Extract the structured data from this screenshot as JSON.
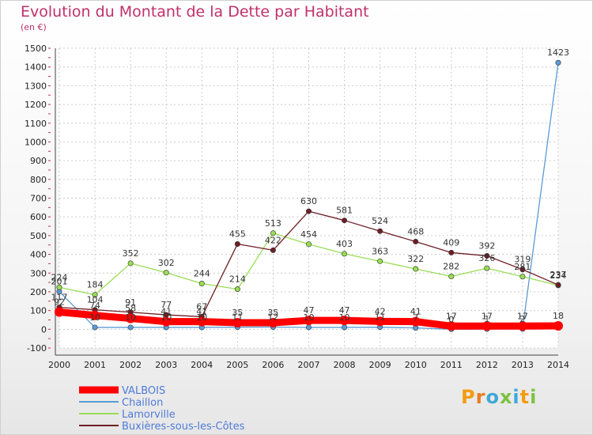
{
  "chart_data": {
    "type": "line",
    "title": "Evolution du Montant de la Dette par Habitant",
    "subtitle": "(en €)",
    "xlabel": "",
    "ylabel": "",
    "x": [
      2000,
      2001,
      2002,
      2003,
      2004,
      2005,
      2006,
      2007,
      2008,
      2009,
      2010,
      2011,
      2012,
      2013,
      2014
    ],
    "ylim": [
      -100,
      1500
    ],
    "y_ticks": [
      -100,
      0,
      100,
      200,
      300,
      400,
      500,
      600,
      700,
      800,
      900,
      1000,
      1100,
      1200,
      1300,
      1400,
      1500
    ],
    "grid": true,
    "legend_position": "bottom-left",
    "series": [
      {
        "name": "Chaillon",
        "color": "#5b9bd5",
        "values": [
          201,
          10,
          10,
          10,
          10,
          11,
          12,
          10,
          10,
          11,
          7,
          0,
          1,
          2,
          1423
        ],
        "labels": [
          "201",
          "10",
          "10",
          "10",
          "10",
          "11",
          "12",
          "10",
          "10",
          "11",
          "7",
          "0",
          "1",
          "2",
          "1423"
        ]
      },
      {
        "name": "Lamorville",
        "color": "#99dd55",
        "values": [
          224,
          184,
          352,
          302,
          244,
          214,
          513,
          454,
          403,
          363,
          322,
          282,
          326,
          281,
          234
        ],
        "labels": [
          "224",
          "184",
          "352",
          "302",
          "244",
          "214",
          "513",
          "454",
          "403",
          "363",
          "322",
          "282",
          "326",
          "281",
          "234"
        ]
      },
      {
        "name": "Buxières-sous-les-Côtes",
        "color": "#6e1f25",
        "values": [
          117,
          104,
          91,
          77,
          67,
          455,
          422,
          630,
          581,
          524,
          468,
          409,
          392,
          319,
          237
        ],
        "labels": [
          "117",
          "104",
          "91",
          "77",
          "67",
          "455",
          "422",
          "630",
          "581",
          "524",
          "468",
          "409",
          "392",
          "319",
          "237"
        ]
      },
      {
        "name": "VALBOIS",
        "color": "#ff0000",
        "values": [
          92,
          74,
          58,
          41,
          41,
          35,
          35,
          47,
          47,
          42,
          41,
          17,
          17,
          17,
          18
        ],
        "labels": [
          "92",
          "74",
          "58",
          "41",
          "41",
          "35",
          "35",
          "47",
          "47",
          "42",
          "41",
          "17",
          "17",
          "17",
          "18"
        ]
      }
    ],
    "legend": [
      "VALBOIS",
      "Chaillon",
      "Lamorville",
      "Buxières-sous-les-Côtes"
    ]
  },
  "branding": {
    "logo_letters": [
      "P",
      "r",
      "o",
      "x",
      "i",
      "t",
      "i"
    ],
    "logo_colors": [
      "#f39c12",
      "#e67e22",
      "#3fa9d8",
      "#7cc242",
      "#3fa9d8",
      "#f39c12",
      "#7cc242"
    ]
  }
}
